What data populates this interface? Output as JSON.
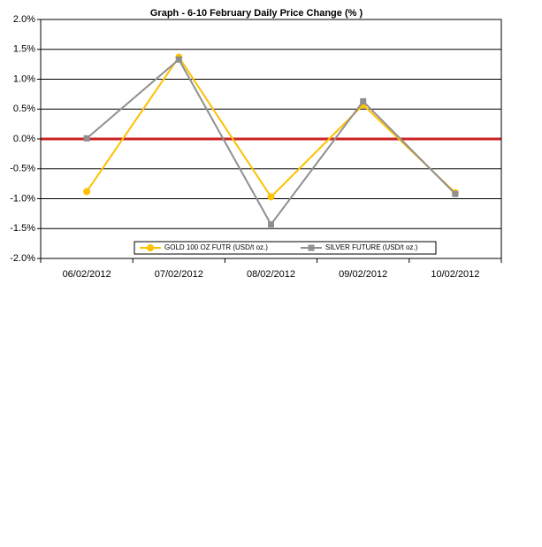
{
  "chart_data": {
    "type": "line",
    "title": "Graph -  6-10 February Daily Price Change (% )",
    "categories": [
      "06/02/2012",
      "07/02/2012",
      "08/02/2012",
      "09/02/2012",
      "10/02/2012"
    ],
    "series": [
      {
        "name": "GOLD 100 OZ FUTR (USD/t oz.)",
        "color": "#ffc000",
        "marker": "circle",
        "values": [
          -0.88,
          1.37,
          -0.97,
          0.57,
          -0.9
        ]
      },
      {
        "name": "SILVER FUTURE (USD/t oz.)",
        "color": "#909090",
        "marker": "square",
        "values": [
          0.01,
          1.33,
          -1.43,
          0.63,
          -0.92
        ]
      }
    ],
    "ylim": [
      -2,
      2
    ],
    "yticks": [
      {
        "value": -2,
        "label": "-2.0%"
      },
      {
        "value": -1.5,
        "label": "-1.5%"
      },
      {
        "value": -1,
        "label": "-1.0%"
      },
      {
        "value": -0.5,
        "label": "-0.5%"
      },
      {
        "value": 0,
        "label": "0.0%"
      },
      {
        "value": 0.5,
        "label": "0.5%"
      },
      {
        "value": 1,
        "label": "1.0%"
      },
      {
        "value": 1.5,
        "label": "1.5%"
      },
      {
        "value": 2,
        "label": "2.0%"
      }
    ],
    "grid": true,
    "zero_line_color": "#cc2222",
    "legend": "bottom"
  }
}
